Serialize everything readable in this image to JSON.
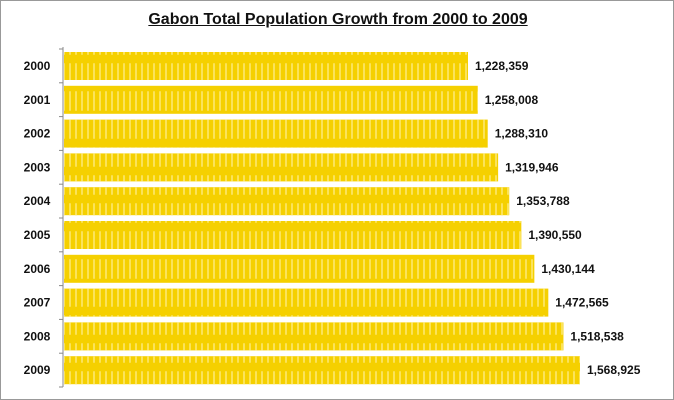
{
  "chart_data": {
    "type": "bar",
    "orientation": "horizontal",
    "title": "Gabon Total Population Growth from 2000 to 2009",
    "categories": [
      "2000",
      "2001",
      "2002",
      "2003",
      "2004",
      "2005",
      "2006",
      "2007",
      "2008",
      "2009"
    ],
    "values": [
      1228359,
      1258008,
      1288310,
      1319946,
      1353788,
      1390550,
      1430144,
      1472565,
      1518538,
      1568925
    ],
    "data_labels": [
      "1,228,359",
      "1,258,008",
      "1,288,310",
      "1,319,946",
      "1,353,788",
      "1,390,550",
      "1,430,144",
      "1,472,565",
      "1,518,538",
      "1,568,925"
    ],
    "xlim": [
      0,
      1568925
    ],
    "grid": false,
    "legend": "none",
    "bar_color": "#F5D000",
    "bar_pattern_color": "#FBE35A"
  }
}
